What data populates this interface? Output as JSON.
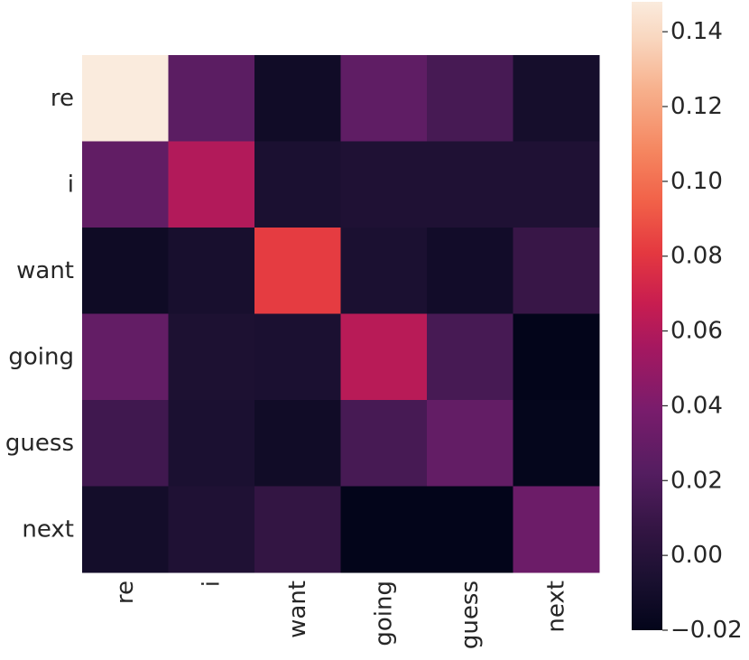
{
  "chart_data": {
    "type": "heatmap",
    "title": "",
    "xlabel": "",
    "ylabel": "",
    "rows": [
      "re",
      "i",
      "want",
      "going",
      "guess",
      "next"
    ],
    "columns": [
      "re",
      "i",
      "want",
      "going",
      "guess",
      "next"
    ],
    "values": [
      [
        0.148,
        0.025,
        -0.012,
        0.027,
        0.016,
        -0.009
      ],
      [
        0.028,
        0.06,
        -0.006,
        -0.004,
        -0.004,
        -0.004
      ],
      [
        -0.013,
        -0.008,
        0.082,
        -0.006,
        -0.011,
        0.009
      ],
      [
        0.029,
        -0.005,
        -0.006,
        0.062,
        0.016,
        -0.024
      ],
      [
        0.013,
        -0.006,
        -0.012,
        0.016,
        0.029,
        -0.019
      ],
      [
        -0.01,
        -0.004,
        0.007,
        -0.024,
        -0.021,
        0.033
      ]
    ],
    "colorbar": {
      "min": -0.02,
      "max": 0.148,
      "ticks": [
        -0.02,
        0.0,
        0.02,
        0.04,
        0.06,
        0.08,
        0.1,
        0.12,
        0.14
      ],
      "tick_labels": [
        "−0.02",
        "0.00",
        "0.02",
        "0.04",
        "0.06",
        "0.08",
        "0.10",
        "0.12",
        "0.14"
      ]
    },
    "colormap": "rocket",
    "grid": false
  }
}
